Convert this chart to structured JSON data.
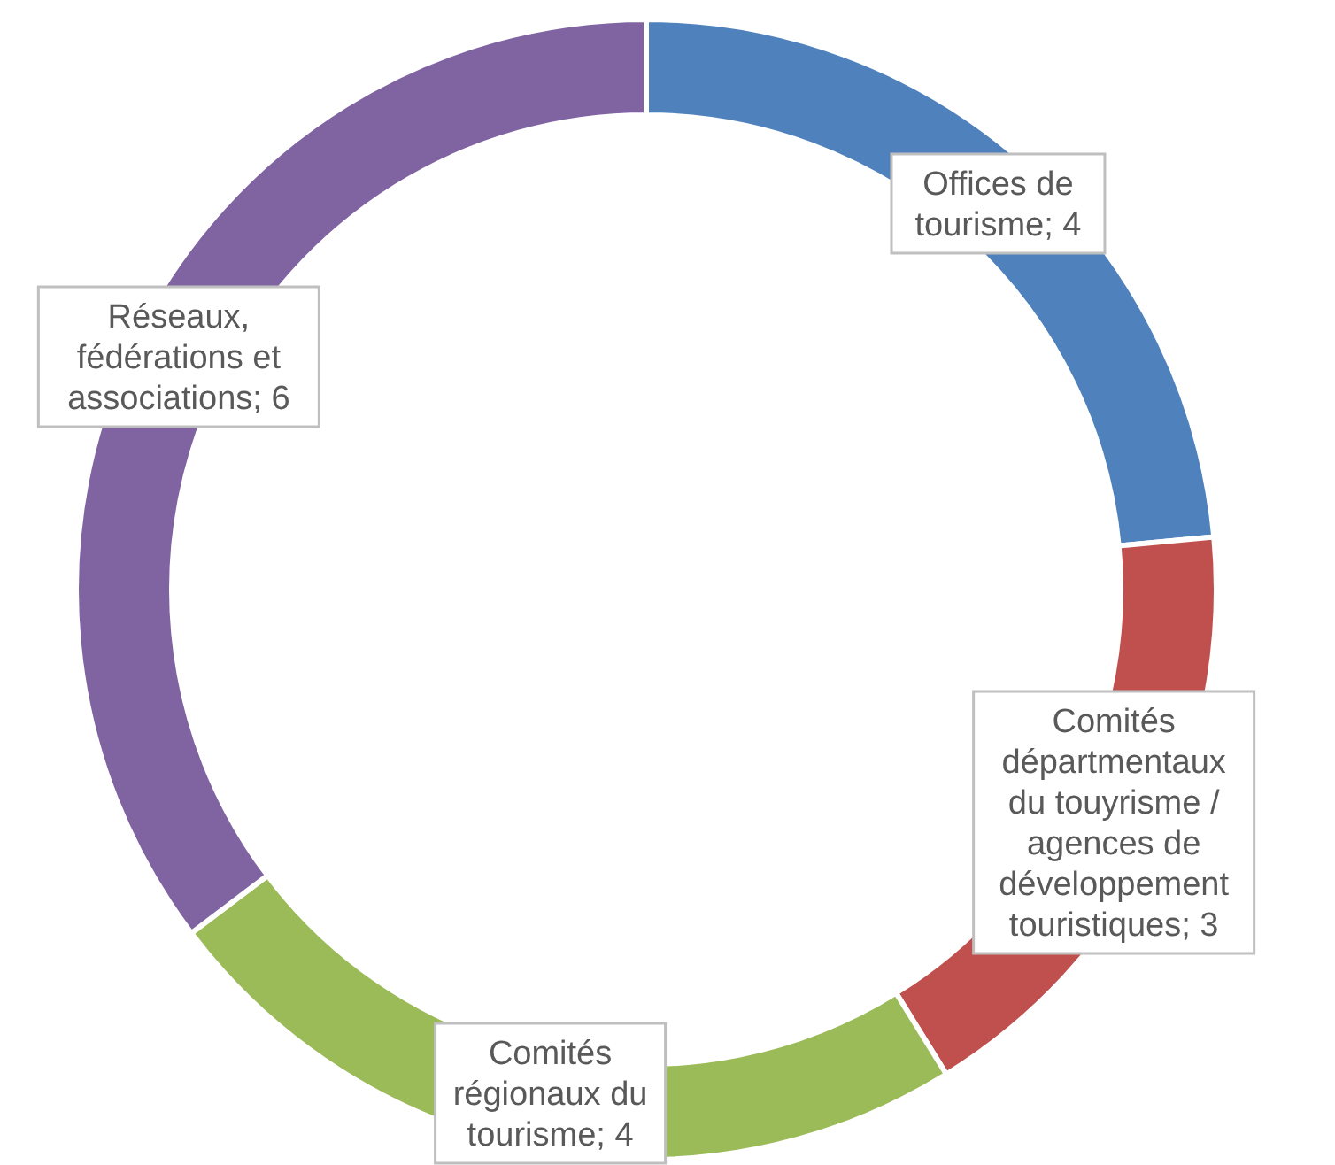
{
  "chart_data": {
    "type": "donut",
    "categories": [
      "Offices de tourisme",
      "Comités départmentaux du touyrisme / agences de développement touristiques",
      "Comités régionaux du tourisme",
      "Réseaux, fédérations et associations"
    ],
    "values": [
      4,
      3,
      4,
      6
    ],
    "colors": [
      "#4f81bd",
      "#c0504d",
      "#9bbb59",
      "#8064a2"
    ],
    "value_labels": [
      "; 4",
      "; 3",
      "; 4",
      "; 6"
    ],
    "legend": false
  }
}
